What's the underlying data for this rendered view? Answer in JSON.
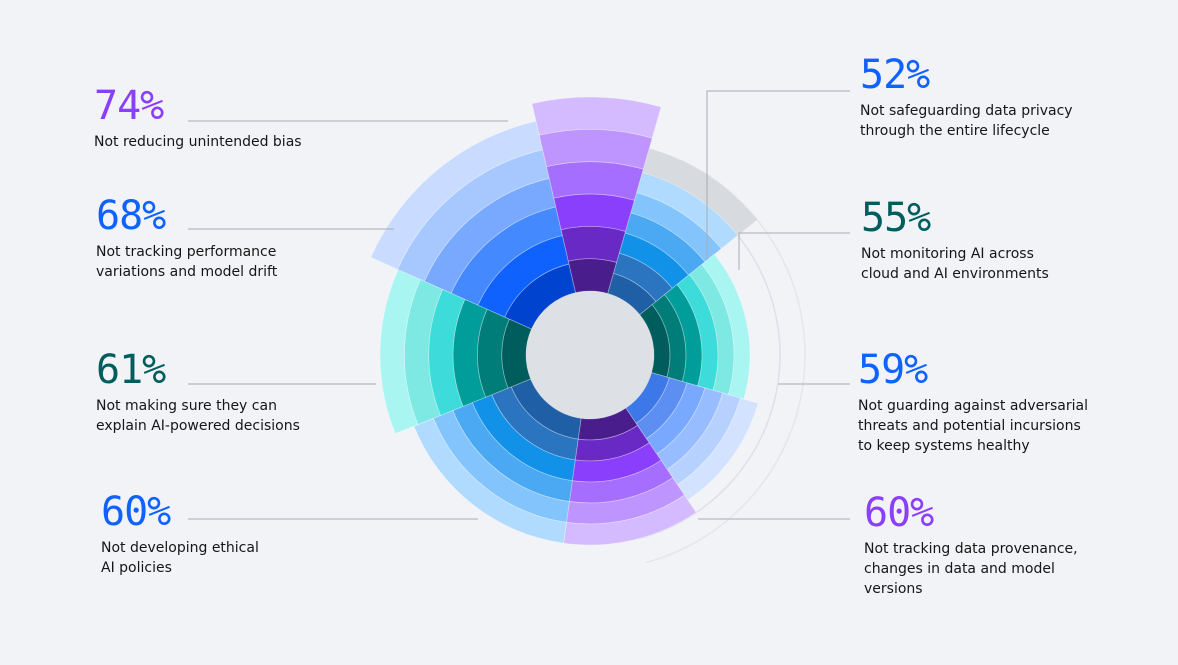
{
  "chart_data": {
    "type": "polar-bar",
    "unit": "%",
    "colors": {
      "purple": "#8a3ffc",
      "blue": "#0f62fe",
      "teal": "#005d5d",
      "cyan": "#1192e8",
      "lightblue": "#4589ff"
    },
    "items": [
      {
        "value": 52,
        "label": "Not safeguarding data privacy through the entire lifecycle",
        "label_lines": [
          "Not safeguarding data privacy",
          "through the entire lifecycle"
        ],
        "color": "#0f62fe",
        "palette": "cyan"
      },
      {
        "value": 55,
        "label": "Not monitoring AI across cloud and AI environments",
        "label_lines": [
          "Not monitoring AI across",
          "cloud and AI environments"
        ],
        "color": "#005d5d",
        "palette": "teal"
      },
      {
        "value": 59,
        "label": "Not guarding against adversarial threats and potential incursions to keep systems healthy",
        "label_lines": [
          "Not guarding against adversarial",
          "threats and potential incursions",
          "to keep systems healthy"
        ],
        "color": "#0f62fe",
        "palette": "lightblue"
      },
      {
        "value": 60,
        "label": "Not tracking data provenance, changes in data and model versions",
        "label_lines": [
          "Not tracking data provenance,",
          "changes in data and model versions"
        ],
        "color": "#8a3ffc",
        "palette": "purple"
      },
      {
        "value": 60,
        "label": "Not developing ethical AI policies",
        "label_lines": [
          "Not developing ethical",
          "AI policies"
        ],
        "color": "#0f62fe",
        "palette": "cyan"
      },
      {
        "value": 61,
        "label": "Not making sure they can explain AI-powered decisions",
        "label_lines": [
          "Not making sure they can",
          "explain AI-powered decisions"
        ],
        "color": "#005d5d",
        "palette": "teal"
      },
      {
        "value": 68,
        "label": "Not tracking performance variations and model drift",
        "label_lines": [
          "Not tracking performance",
          "variations and model drift"
        ],
        "color": "#0f62fe",
        "palette": "blue"
      },
      {
        "value": 74,
        "label": "Not reducing unintended bias",
        "label_lines": [
          "Not reducing unintended bias"
        ],
        "color": "#8a3ffc",
        "palette": "purple"
      }
    ]
  }
}
